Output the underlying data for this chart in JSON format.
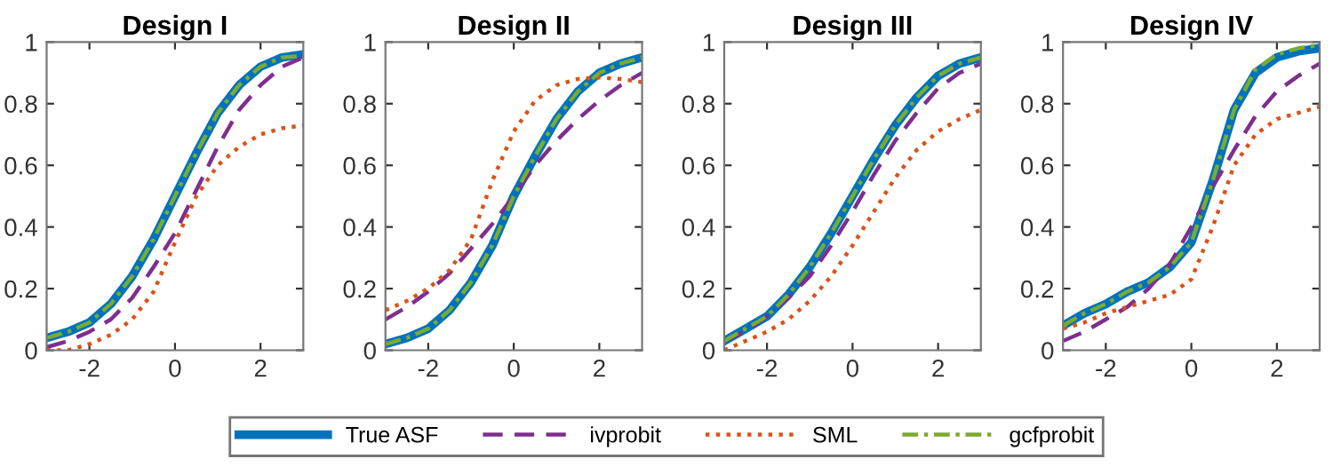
{
  "chart_data": [
    {
      "type": "line",
      "title": "Design I",
      "x": [
        -3,
        -2.5,
        -2,
        -1.5,
        -1,
        -0.5,
        0,
        0.5,
        1,
        1.5,
        2,
        2.5,
        3
      ],
      "xlim": [
        -3,
        3
      ],
      "xticks": [
        -2,
        0,
        2
      ],
      "ylim": [
        0,
        1
      ],
      "yticks": [
        0,
        0.2,
        0.4,
        0.6,
        0.8,
        1
      ],
      "legend": "bottom",
      "series": [
        {
          "name": "True ASF",
          "color": "#0072bd",
          "line_style": "solid",
          "values": [
            0.04,
            0.06,
            0.09,
            0.15,
            0.24,
            0.36,
            0.5,
            0.64,
            0.77,
            0.86,
            0.92,
            0.95,
            0.96
          ]
        },
        {
          "name": "ivprobit",
          "color": "#7e2f8e",
          "line_style": "dashed",
          "values": [
            0.01,
            0.03,
            0.06,
            0.1,
            0.17,
            0.27,
            0.38,
            0.52,
            0.66,
            0.78,
            0.86,
            0.92,
            0.95
          ]
        },
        {
          "name": "SML",
          "color": "#d95319",
          "line_style": "dotted",
          "values": [
            0.0,
            0.0,
            0.02,
            0.05,
            0.1,
            0.19,
            0.35,
            0.5,
            0.6,
            0.66,
            0.7,
            0.72,
            0.73
          ]
        },
        {
          "name": "gcfprobit",
          "color": "#77ac30",
          "line_style": "dashdot",
          "values": [
            0.04,
            0.06,
            0.09,
            0.15,
            0.24,
            0.36,
            0.5,
            0.64,
            0.77,
            0.86,
            0.92,
            0.95,
            0.955
          ]
        }
      ]
    },
    {
      "type": "line",
      "title": "Design II",
      "x": [
        -3,
        -2.5,
        -2,
        -1.5,
        -1,
        -0.5,
        0,
        0.5,
        1,
        1.5,
        2,
        2.5,
        3
      ],
      "xlim": [
        -3,
        3
      ],
      "xticks": [
        -2,
        0,
        2
      ],
      "ylim": [
        0,
        1
      ],
      "yticks": [
        0,
        0.2,
        0.4,
        0.6,
        0.8,
        1
      ],
      "series": [
        {
          "name": "True ASF",
          "color": "#0072bd",
          "line_style": "solid",
          "values": [
            0.02,
            0.04,
            0.07,
            0.13,
            0.22,
            0.34,
            0.5,
            0.63,
            0.75,
            0.84,
            0.9,
            0.93,
            0.95
          ]
        },
        {
          "name": "ivprobit",
          "color": "#7e2f8e",
          "line_style": "dashed",
          "values": [
            0.1,
            0.14,
            0.19,
            0.25,
            0.33,
            0.41,
            0.5,
            0.6,
            0.68,
            0.75,
            0.81,
            0.86,
            0.9
          ]
        },
        {
          "name": "SML",
          "color": "#d95319",
          "line_style": "dotted",
          "values": [
            0.13,
            0.16,
            0.2,
            0.26,
            0.36,
            0.55,
            0.71,
            0.81,
            0.86,
            0.88,
            0.885,
            0.88,
            0.87
          ]
        },
        {
          "name": "gcfprobit",
          "color": "#77ac30",
          "line_style": "dashdot",
          "values": [
            0.02,
            0.04,
            0.07,
            0.13,
            0.22,
            0.34,
            0.5,
            0.63,
            0.75,
            0.84,
            0.9,
            0.93,
            0.95
          ]
        }
      ]
    },
    {
      "type": "line",
      "title": "Design III",
      "x": [
        -3,
        -2.5,
        -2,
        -1.5,
        -1,
        -0.5,
        0,
        0.5,
        1,
        1.5,
        2,
        2.5,
        3
      ],
      "xlim": [
        -3,
        3
      ],
      "xticks": [
        -2,
        0,
        2
      ],
      "ylim": [
        0,
        1
      ],
      "yticks": [
        0,
        0.2,
        0.4,
        0.6,
        0.8,
        1
      ],
      "series": [
        {
          "name": "True ASF",
          "color": "#0072bd",
          "line_style": "solid",
          "values": [
            0.03,
            0.07,
            0.11,
            0.18,
            0.27,
            0.38,
            0.5,
            0.62,
            0.73,
            0.82,
            0.89,
            0.93,
            0.95
          ]
        },
        {
          "name": "ivprobit",
          "color": "#7e2f8e",
          "line_style": "dashed",
          "values": [
            0.03,
            0.06,
            0.11,
            0.17,
            0.24,
            0.34,
            0.45,
            0.57,
            0.68,
            0.77,
            0.85,
            0.9,
            0.93
          ]
        },
        {
          "name": "SML",
          "color": "#d95319",
          "line_style": "dotted",
          "values": [
            0.0,
            0.03,
            0.06,
            0.1,
            0.16,
            0.24,
            0.34,
            0.45,
            0.56,
            0.65,
            0.71,
            0.75,
            0.78
          ]
        },
        {
          "name": "gcfprobit",
          "color": "#77ac30",
          "line_style": "dashdot",
          "values": [
            0.03,
            0.07,
            0.11,
            0.18,
            0.27,
            0.38,
            0.5,
            0.62,
            0.73,
            0.82,
            0.89,
            0.93,
            0.95
          ]
        }
      ]
    },
    {
      "type": "line",
      "title": "Design IV",
      "x": [
        -3,
        -2.5,
        -2,
        -1.5,
        -1,
        -0.5,
        0,
        0.5,
        1,
        1.5,
        2,
        2.5,
        3
      ],
      "xlim": [
        -3,
        3
      ],
      "xticks": [
        -2,
        0,
        2
      ],
      "ylim": [
        0,
        1
      ],
      "yticks": [
        0,
        0.2,
        0.4,
        0.6,
        0.8,
        1
      ],
      "series": [
        {
          "name": "True ASF",
          "color": "#0072bd",
          "line_style": "solid",
          "values": [
            0.08,
            0.12,
            0.15,
            0.19,
            0.22,
            0.27,
            0.35,
            0.55,
            0.78,
            0.9,
            0.95,
            0.97,
            0.98
          ]
        },
        {
          "name": "ivprobit",
          "color": "#7e2f8e",
          "line_style": "dashed",
          "values": [
            0.03,
            0.06,
            0.1,
            0.14,
            0.2,
            0.28,
            0.4,
            0.53,
            0.65,
            0.76,
            0.84,
            0.89,
            0.93
          ]
        },
        {
          "name": "SML",
          "color": "#d95319",
          "line_style": "dotted",
          "values": [
            0.07,
            0.09,
            0.12,
            0.14,
            0.16,
            0.18,
            0.23,
            0.4,
            0.6,
            0.7,
            0.75,
            0.77,
            0.79
          ]
        },
        {
          "name": "gcfprobit",
          "color": "#77ac30",
          "line_style": "dashdot",
          "values": [
            0.08,
            0.12,
            0.15,
            0.19,
            0.22,
            0.27,
            0.35,
            0.55,
            0.78,
            0.91,
            0.96,
            0.98,
            0.99
          ]
        }
      ]
    }
  ]
}
